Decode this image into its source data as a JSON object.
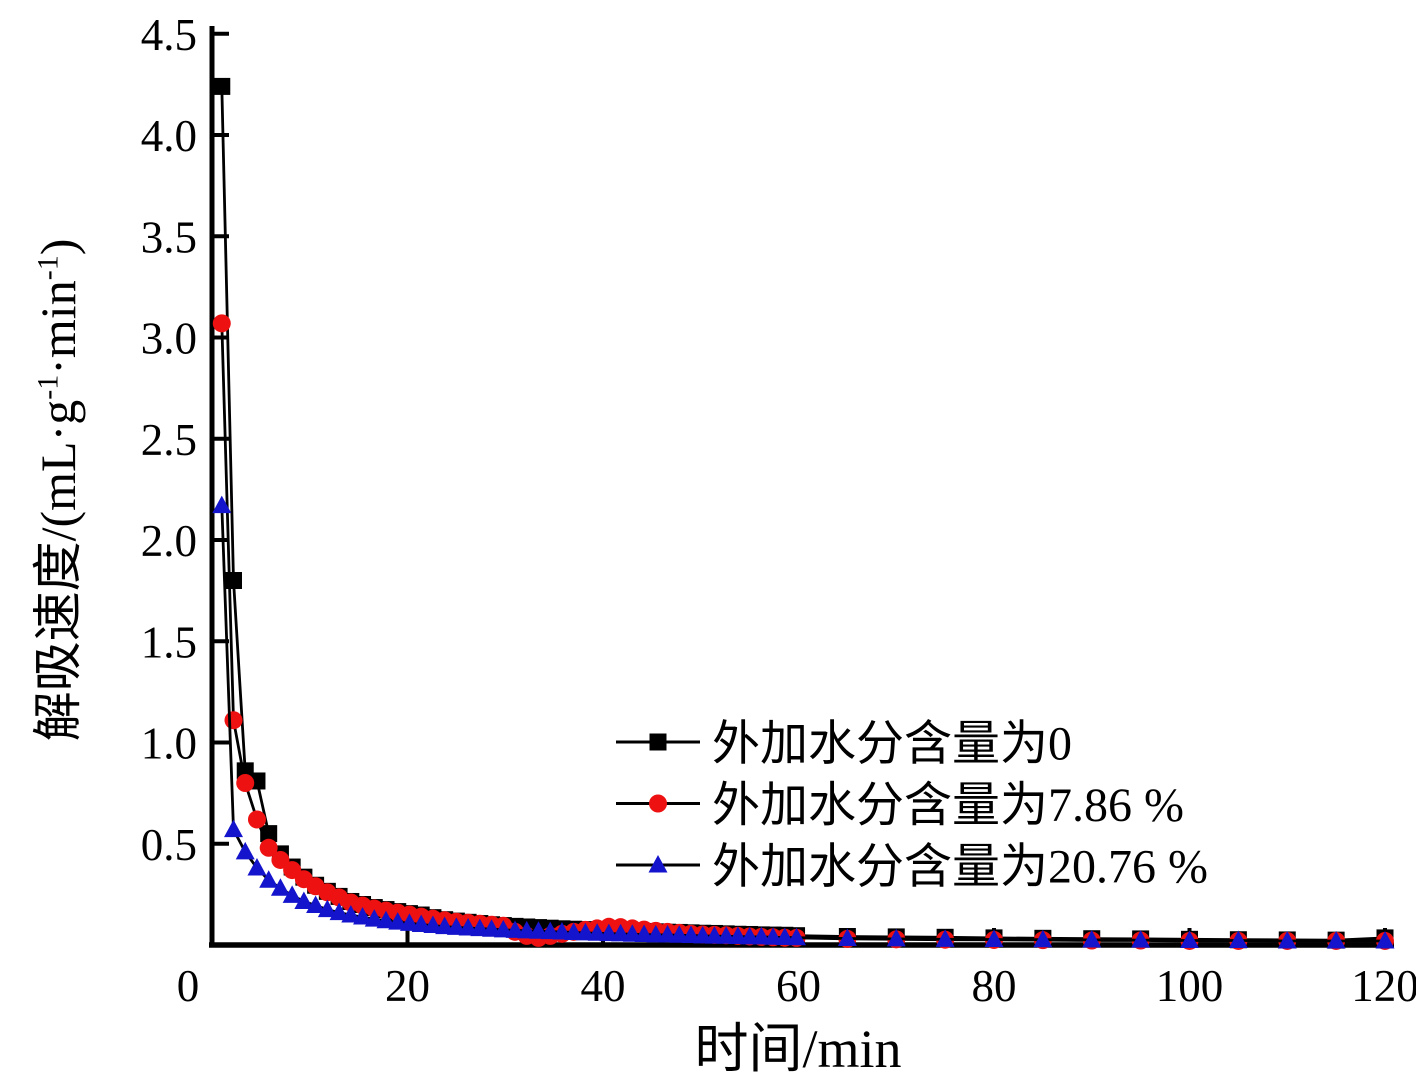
{
  "figure": {
    "background": "#ffffff",
    "axis_color": "#000000"
  },
  "x_axis": {
    "label": "时间/min",
    "ticks": [
      0,
      20,
      40,
      60,
      80,
      100,
      120
    ],
    "tick_labels": [
      "0",
      "20",
      "40",
      "60",
      "80",
      "100",
      "120"
    ]
  },
  "y_axis": {
    "label_plain": "解吸速度/(mL·g⁻¹·min⁻¹)",
    "label_parts": {
      "p1": "解吸速度/(mL·g",
      "sup1": "-1",
      "p2": "·min",
      "sup2": "-1",
      "p3": ")"
    },
    "ticks": [
      0.5,
      1.0,
      1.5,
      2.0,
      2.5,
      3.0,
      3.5,
      4.0,
      4.5
    ],
    "tick_labels": [
      "0.5",
      "1.0",
      "1.5",
      "2.0",
      "2.5",
      "3.0",
      "3.5",
      "4.0",
      "4.5"
    ]
  },
  "chart_data": {
    "type": "line",
    "title": "",
    "xlabel": "时间/min",
    "ylabel": "解吸速度/(mL·g⁻¹·min⁻¹)",
    "xlim": [
      0,
      120
    ],
    "ylim": [
      0,
      4.5
    ],
    "grid": false,
    "legend_position": "inside-right-lower",
    "x": [
      1,
      2.2,
      3.4,
      4.6,
      5.8,
      7,
      8.2,
      9.4,
      10.6,
      11.8,
      13,
      14.2,
      15.4,
      16.6,
      17.8,
      19,
      20.2,
      21.4,
      22.6,
      23.8,
      25,
      26.2,
      27.4,
      28.6,
      29.8,
      31,
      32.2,
      33.4,
      34.6,
      35.8,
      37,
      38.2,
      39.4,
      40.6,
      41.8,
      43,
      44.2,
      45.4,
      46.6,
      47.8,
      49,
      50.2,
      51.4,
      52.6,
      53.8,
      55,
      56.2,
      57.4,
      58.6,
      59.8,
      65,
      70,
      75,
      80,
      85,
      90,
      95,
      100,
      105,
      110,
      115,
      120
    ],
    "series": [
      {
        "name": "外加水分含量为0",
        "marker": "square",
        "marker_color": "#000000",
        "line_color": "#000000",
        "values": [
          4.24,
          1.8,
          0.86,
          0.81,
          0.55,
          0.45,
          0.385,
          0.335,
          0.295,
          0.265,
          0.24,
          0.215,
          0.2,
          0.185,
          0.175,
          0.165,
          0.155,
          0.148,
          0.135,
          0.125,
          0.118,
          0.112,
          0.106,
          0.1,
          0.096,
          0.092,
          0.089,
          0.086,
          0.083,
          0.08,
          0.078,
          0.076,
          0.074,
          0.072,
          0.07,
          0.068,
          0.067,
          0.065,
          0.063,
          0.062,
          0.06,
          0.058,
          0.057,
          0.055,
          0.053,
          0.052,
          0.05,
          0.049,
          0.048,
          0.046,
          0.042,
          0.04,
          0.038,
          0.035,
          0.033,
          0.031,
          0.03,
          0.028,
          0.026,
          0.025,
          0.024,
          0.035
        ]
      },
      {
        "name": "外加水分含量为7.86 %",
        "marker": "circle",
        "marker_color": "#ee1111",
        "line_color": "#000000",
        "values": [
          3.07,
          1.11,
          0.8,
          0.62,
          0.48,
          0.42,
          0.37,
          0.325,
          0.29,
          0.26,
          0.235,
          0.21,
          0.195,
          0.18,
          0.17,
          0.16,
          0.15,
          0.14,
          0.13,
          0.122,
          0.115,
          0.11,
          0.105,
          0.1,
          0.095,
          0.065,
          0.045,
          0.035,
          0.045,
          0.055,
          0.065,
          0.075,
          0.082,
          0.09,
          0.088,
          0.082,
          0.076,
          0.07,
          0.065,
          0.06,
          0.055,
          0.052,
          0.05,
          0.048,
          0.045,
          0.042,
          0.04,
          0.038,
          0.036,
          0.035,
          0.03,
          0.028,
          0.026,
          0.025,
          0.024,
          0.022,
          0.022,
          0.02,
          0.02,
          0.02,
          0.02,
          0.02
        ]
      },
      {
        "name": "外加水分含量为20.76 %",
        "marker": "triangle",
        "marker_color": "#1414cc",
        "line_color": "#000000",
        "values": [
          2.17,
          0.57,
          0.46,
          0.38,
          0.32,
          0.28,
          0.245,
          0.215,
          0.195,
          0.175,
          0.16,
          0.148,
          0.138,
          0.128,
          0.12,
          0.113,
          0.107,
          0.101,
          0.096,
          0.091,
          0.087,
          0.084,
          0.081,
          0.078,
          0.075,
          0.072,
          0.07,
          0.068,
          0.066,
          0.064,
          0.062,
          0.06,
          0.058,
          0.056,
          0.055,
          0.053,
          0.052,
          0.05,
          0.05,
          0.048,
          0.047,
          0.045,
          0.044,
          0.043,
          0.042,
          0.04,
          0.04,
          0.038,
          0.037,
          0.036,
          0.032,
          0.03,
          0.028,
          0.027,
          0.026,
          0.025,
          0.024,
          0.022,
          0.022,
          0.02,
          0.02,
          0.02
        ]
      }
    ]
  }
}
